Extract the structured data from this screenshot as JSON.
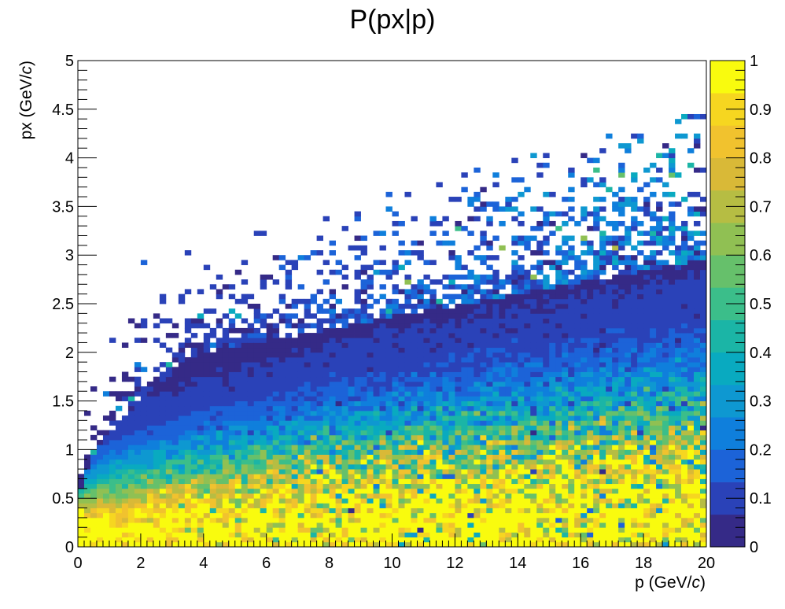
{
  "chart_data": {
    "type": "heatmap",
    "title": "P(px|p)",
    "xlabel": {
      "text": "p (GeV/",
      "italic": "c",
      "close": ")"
    },
    "ylabel": {
      "text": "px (GeV/",
      "italic": "c",
      "close": ")"
    },
    "xlim": [
      0,
      20
    ],
    "ylim": [
      0,
      5
    ],
    "zlim": [
      0,
      1
    ],
    "x_bins": 100,
    "y_bins": 100,
    "x_ticks": [
      "0",
      "2",
      "4",
      "6",
      "8",
      "10",
      "12",
      "14",
      "16",
      "18",
      "20"
    ],
    "y_ticks": [
      "0",
      "0.5",
      "1",
      "1.5",
      "2",
      "2.5",
      "3",
      "3.5",
      "4",
      "4.5",
      "5"
    ],
    "z_ticks": [
      "0",
      "0.1",
      "0.2",
      "0.3",
      "0.4",
      "0.5",
      "0.6",
      "0.7",
      "0.8",
      "0.9",
      "1"
    ],
    "grid": false,
    "colorbar": "right",
    "palette": [
      "#352a87",
      "#2a42b8",
      "#1c63d8",
      "#0f7fdc",
      "#0e98d1",
      "#09aac0",
      "#1bb5a6",
      "#3bbe8a",
      "#66c06b",
      "#90c053",
      "#b6bd43",
      "#d9b937",
      "#f1c22e",
      "#f6d620",
      "#f9fb0e"
    ],
    "description_of_density": "Conditional probability P(px|p): near 1 for small px at low p, falling off with px; the upper edge of filled cells rises from px~0.5 at p~0.3 to px~2 at p~4, reaching sparse cells up to px~3.9 at high p."
  }
}
